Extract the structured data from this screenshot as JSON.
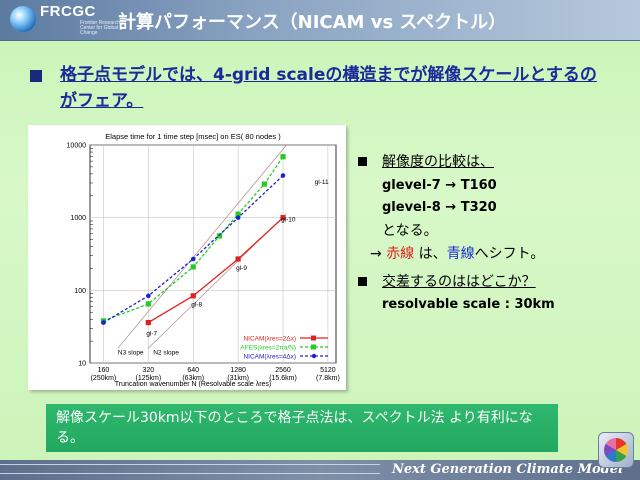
{
  "header": {
    "logo_text": "FRCGC",
    "logo_subtext": "Frontier Research Center for Global Change",
    "title": "計算パフォーマンス（NICAM vs スペクトル）"
  },
  "bullet1": "格子点モデルでは、4-grid scaleの構造までが解像スケールとするのがフェア。",
  "right_panel": {
    "line1": "解像度の比較は、",
    "line2": "glevel-7 → T160",
    "line3": "glevel-8 → T320",
    "line4": "となる。",
    "line5_prefix": "→ ",
    "line5_red": "赤線",
    "line5_mid": " は、",
    "line5_blue": "青線",
    "line5_suffix": "へシフト。",
    "line6": "交差するのははどこか？",
    "line7": "resolvable scale : 30km",
    "red_color": "#e02020",
    "blue_color": "#2030d0"
  },
  "bottom_box": "解像スケール30km以下のところで格子点法は、スペクトル法 より有利になる。",
  "footer": "Next Generation Climate Model",
  "chart_data": {
    "type": "line",
    "title": "Elapse time for 1 time step [msec] on ES( 80 nodes )",
    "xlabel": "Truncation wavenumber N (Resolvable scale λres)",
    "ylabel": "",
    "xscale": "log",
    "yscale": "log",
    "xlim": [
      130,
      5800
    ],
    "ylim": [
      10,
      10000
    ],
    "x_ticks": [
      {
        "value": 160,
        "label": "160",
        "sub": "(250km)"
      },
      {
        "value": 320,
        "label": "320",
        "sub": "(125km)"
      },
      {
        "value": 640,
        "label": "640",
        "sub": "(63km)"
      },
      {
        "value": 1280,
        "label": "1280",
        "sub": "(31km)"
      },
      {
        "value": 2560,
        "label": "2560",
        "sub": "(15.6km)"
      },
      {
        "value": 5120,
        "label": "5120",
        "sub": "(7.8km)"
      }
    ],
    "y_ticks": [
      {
        "value": 10,
        "label": "10"
      },
      {
        "value": 100,
        "label": "100"
      },
      {
        "value": 1000,
        "label": "1000"
      },
      {
        "value": 10000,
        "label": "10000"
      }
    ],
    "grid": true,
    "series": [
      {
        "name": "NICAM(λres=2Δx)",
        "color": "#e02020",
        "marker": "square",
        "dash": "",
        "x": [
          320,
          640,
          1280,
          2560
        ],
        "y": [
          36,
          84,
          270,
          1000
        ]
      },
      {
        "name": "AFES(λres=2πa/N)",
        "color": "#22cc22",
        "marker": "square",
        "dash": "3,2",
        "x": [
          160,
          320,
          640,
          960,
          1280,
          1920,
          2560
        ],
        "y": [
          38,
          65,
          210,
          560,
          1120,
          2900,
          6900
        ]
      },
      {
        "name": "NICAM(λres=4Δx)",
        "color": "#2020d0",
        "marker": "dot",
        "dash": "3,2",
        "x": [
          160,
          320,
          640,
          1280,
          2560
        ],
        "y": [
          36,
          84,
          270,
          1000,
          3800
        ]
      }
    ],
    "slope_lines": [
      {
        "label": "N3 slope",
        "x": [
          200,
          2700
        ],
        "y": [
          16,
          39000
        ]
      },
      {
        "label": "N2 slope",
        "x": [
          320,
          2700
        ],
        "y": [
          16,
          1140
        ]
      }
    ],
    "glevel_labels": [
      {
        "label": "gl-7",
        "x": 320,
        "y": 24
      },
      {
        "label": "gl-8",
        "x": 640,
        "y": 60
      },
      {
        "label": "gl-9",
        "x": 1280,
        "y": 190
      },
      {
        "label": "gl-10",
        "x": 2560,
        "y": 880
      },
      {
        "label": "gl-11",
        "x": 4300,
        "y": 2900
      }
    ],
    "legend_position": "bottom-right"
  }
}
